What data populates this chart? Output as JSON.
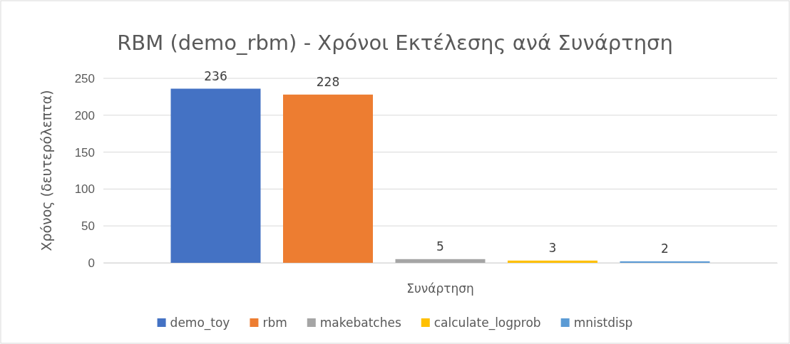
{
  "chart_data": {
    "type": "bar",
    "title": "RBM (demo_rbm) - Χρόνοι Εκτέλεσης ανά Συνάρτηση",
    "xlabel": "Συνάρτηση",
    "ylabel": "Χρόνος (δευτερόλεπτα)",
    "categories": [
      null
    ],
    "series": [
      {
        "name": "demo_toy",
        "color": "#4472c4",
        "values": [
          236
        ]
      },
      {
        "name": "rbm",
        "color": "#ed7d31",
        "values": [
          228
        ]
      },
      {
        "name": "makebatches",
        "color": "#a5a5a5",
        "values": [
          5
        ]
      },
      {
        "name": "calculate_logprob",
        "color": "#ffc000",
        "values": [
          3
        ]
      },
      {
        "name": "mnistdisp",
        "color": "#5b9bd5",
        "values": [
          2
        ]
      }
    ],
    "ylim": [
      0,
      250
    ],
    "yticks": [
      0,
      50,
      100,
      150,
      200,
      250
    ],
    "grid": "y",
    "legend": "bottom",
    "data_labels": true
  }
}
